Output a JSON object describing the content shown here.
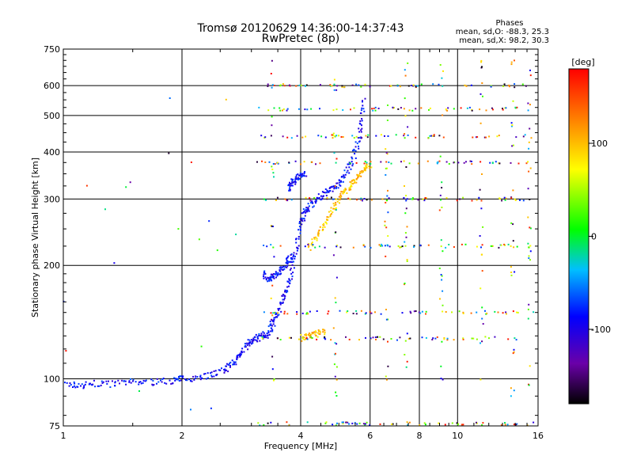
{
  "chart_data": {
    "type": "scatter",
    "title": "Tromsø 20120629 14:36:00-14:37:43",
    "subtitle": "RwPretec (8p)",
    "xlabel": "Frequency [MHz]",
    "ylabel": "Stationary phase Virtual Height [km]",
    "x_scale": "log",
    "y_scale": "log",
    "xlim": [
      1,
      16
    ],
    "ylim": [
      75,
      750
    ],
    "x_ticks": [
      1,
      2,
      4,
      6,
      8,
      10,
      16
    ],
    "x_tick_labels": [
      "1",
      "2",
      "4",
      "6",
      "8",
      "10",
      "16"
    ],
    "y_ticks": [
      75,
      100,
      200,
      300,
      400,
      500,
      600,
      750
    ],
    "y_tick_labels": [
      "75",
      "100",
      "200",
      "300",
      "400",
      "500",
      "600",
      "750"
    ],
    "grid": true,
    "stats": {
      "heading": "Phases",
      "line_o": "mean, sd,O: -88.3, 25.3",
      "line_x": "mean, sd,X:  98.2, 30.3"
    },
    "colorbar": {
      "label": "[deg]",
      "range": [
        -180,
        180
      ],
      "ticks": [
        100,
        0,
        -100
      ],
      "tick_labels": [
        "100",
        "0",
        "-100"
      ]
    },
    "series": [
      {
        "mode": "O",
        "mean_phase": -88.3,
        "traces": [
          {
            "x": [
              1.0,
              1.1,
              1.2,
              1.35,
              1.5,
              1.7,
              1.9,
              2.0,
              2.2,
              2.4,
              2.6,
              2.7
            ],
            "y": [
              97,
              96,
              97,
              97,
              98,
              98,
              99,
              100,
              101,
              103,
              106,
              110
            ]
          },
          {
            "x": [
              2.7,
              2.8,
              2.9,
              3.0,
              3.1,
              3.2,
              3.3,
              3.4,
              3.5,
              3.6,
              3.7,
              3.8,
              3.9,
              4.0
            ],
            "y": [
              110,
              116,
              122,
              126,
              128,
              130,
              132,
              140,
              150,
              162,
              175,
              195,
              225,
              260
            ]
          },
          {
            "x": [
              4.0,
              4.1,
              4.2,
              4.4,
              4.6,
              4.8,
              5.0,
              5.2,
              5.4,
              5.6,
              5.7,
              5.8
            ],
            "y": [
              260,
              275,
              285,
              300,
              310,
              320,
              330,
              350,
              380,
              420,
              480,
              560
            ]
          },
          {
            "x": [
              3.2,
              3.3,
              3.4,
              3.5,
              3.6,
              3.7,
              3.8
            ],
            "y": [
              190,
              185,
              186,
              190,
              196,
              205,
              215
            ]
          },
          {
            "x": [
              3.7,
              3.8,
              3.9,
              4.0,
              4.1
            ],
            "y": [
              320,
              330,
              340,
              345,
              350
            ]
          }
        ]
      },
      {
        "mode": "X",
        "mean_phase": 98.2,
        "traces": [
          {
            "x": [
              4.2,
              4.4,
              4.6,
              4.8,
              5.0,
              5.2,
              5.4,
              5.6,
              5.8,
              6.0
            ],
            "y": [
              220,
              240,
              260,
              280,
              300,
              315,
              330,
              345,
              360,
              370
            ]
          },
          {
            "x": [
              4.0,
              4.2,
              4.4,
              4.6
            ],
            "y": [
              128,
              130,
              132,
              134
            ]
          }
        ]
      }
    ]
  }
}
